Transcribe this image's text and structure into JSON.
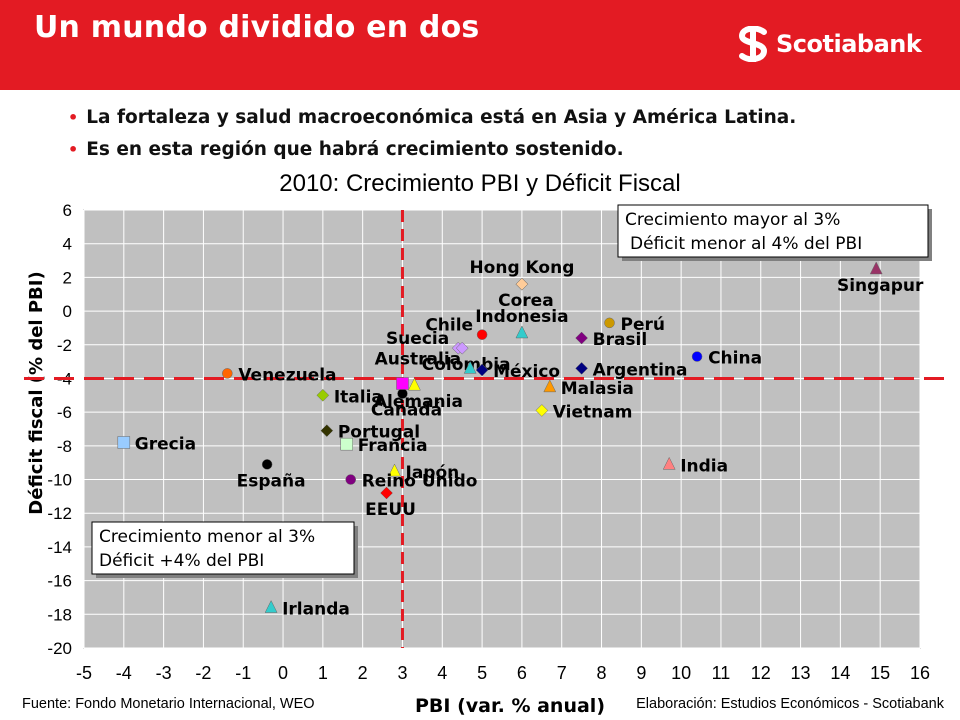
{
  "header": {
    "title": "Un mundo dividido en dos",
    "logo_text": "Scotiabank",
    "bg_color": "#e31b23"
  },
  "bullets": [
    "La fortaleza y salud macroeconómica está en Asia y América Latina.",
    "Es en esta región que habrá crecimiento sostenido."
  ],
  "footer": {
    "source": "Fuente: Fondo Monetario Internacional, WEO",
    "credit": "Elaboración: Estudios Económicos - Scotiabank"
  },
  "chart_data": {
    "type": "scatter",
    "title": "2010: Crecimiento PBI y Déficit Fiscal",
    "xlabel": "PBI (var. % anual)",
    "ylabel": "Déficit fiscal (% del PBI)",
    "xlim": [
      -5,
      16
    ],
    "ylim": [
      -20,
      6
    ],
    "xticks": [
      "-5",
      "-4",
      "-3",
      "-2",
      "-1",
      "0",
      "1",
      "2",
      "3",
      "4",
      "5",
      "6",
      "7",
      "8",
      "9",
      "10",
      "11",
      "12",
      "13",
      "14",
      "15",
      "16"
    ],
    "yticks": [
      "6",
      "4",
      "2",
      "0",
      "-2",
      "-4",
      "-6",
      "-8",
      "-10",
      "-12",
      "-14",
      "-16",
      "-18",
      "-20"
    ],
    "grid": "horizontal and vertical",
    "plot_background": "#c0c0c0",
    "reference_lines": {
      "x": 3,
      "y": -4,
      "color": "#e31b23"
    },
    "annotations": [
      {
        "lines": [
          "Crecimiento mayor al 3%",
          "Déficit menor al 4% del PBI"
        ],
        "anchor": "top-right"
      },
      {
        "lines": [
          "Crecimiento menor al 3%",
          "Déficit    +4% del PBI"
        ],
        "anchor": "lower-left"
      }
    ],
    "points": [
      {
        "label": "Singapur",
        "x": 14.9,
        "y": 2.5,
        "color": "#993366",
        "marker": "triangle",
        "label_pos": "below"
      },
      {
        "label": "Hong Kong",
        "x": 6.0,
        "y": 1.6,
        "color": "#ffcc99",
        "marker": "diamond",
        "label_pos": "above"
      },
      {
        "label": "Corea",
        "x": 6.0,
        "y": 1.6,
        "color": "#ffcc99",
        "marker": "diamond",
        "label_pos": "below"
      },
      {
        "label": "Chile",
        "x": 5.0,
        "y": -1.4,
        "color": "#ff0000",
        "marker": "circle",
        "label_pos": "left"
      },
      {
        "label": "Indonesia",
        "x": 6.0,
        "y": -1.3,
        "color": "#33cccc",
        "marker": "triangle",
        "label_pos": "above"
      },
      {
        "label": "Perú",
        "x": 8.2,
        "y": -0.7,
        "color": "#cc9900",
        "marker": "circle",
        "label_pos": "right"
      },
      {
        "label": "Brasil",
        "x": 7.5,
        "y": -1.6,
        "color": "#800080",
        "marker": "diamond",
        "label_pos": "right"
      },
      {
        "label": "Suecia",
        "x": 4.4,
        "y": -2.2,
        "color": "#cc99ff",
        "marker": "diamond",
        "label_pos": "left"
      },
      {
        "label": "Colombia",
        "x": 4.5,
        "y": -2.2,
        "color": "#cc99ff",
        "marker": "diamond",
        "label_pos": "below"
      },
      {
        "label": "China",
        "x": 10.4,
        "y": -2.7,
        "color": "#0000ff",
        "marker": "circle",
        "label_pos": "right"
      },
      {
        "label": "México",
        "x": 5.0,
        "y": -3.5,
        "color": "#000080",
        "marker": "diamond",
        "label_pos": "right"
      },
      {
        "label": "Australia",
        "x": 4.7,
        "y": -3.4,
        "color": "#33cccc",
        "marker": "triangle",
        "label_pos": "left"
      },
      {
        "label": "Argentina",
        "x": 7.5,
        "y": -3.4,
        "color": "#000080",
        "marker": "diamond",
        "label_pos": "right"
      },
      {
        "label": "Venezuela",
        "x": -1.4,
        "y": -3.7,
        "color": "#ff6600",
        "marker": "circle",
        "label_pos": "right"
      },
      {
        "label": "Malasia",
        "x": 6.7,
        "y": -4.5,
        "color": "#ff9900",
        "marker": "triangle",
        "label_pos": "right"
      },
      {
        "label": "Alemania",
        "x": 3.3,
        "y": -4.4,
        "color": "#ffff00",
        "marker": "triangle",
        "label_pos": "below"
      },
      {
        "label": "Canadá",
        "x": 3.0,
        "y": -4.9,
        "color": "#000000",
        "marker": "circle",
        "label_pos": "below"
      },
      {
        "label": "Italia",
        "x": 1.0,
        "y": -5.0,
        "color": "#99cc00",
        "marker": "diamond",
        "label_pos": "right"
      },
      {
        "label": "Vietnam",
        "x": 6.5,
        "y": -5.9,
        "color": "#ffff00",
        "marker": "diamond",
        "label_pos": "right"
      },
      {
        "label": "Portugal",
        "x": 1.1,
        "y": -7.1,
        "color": "#333300",
        "marker": "diamond",
        "label_pos": "right"
      },
      {
        "label": "Francia",
        "x": 1.6,
        "y": -7.9,
        "color": "#ccffcc",
        "marker": "square",
        "label_pos": "right"
      },
      {
        "label": "Grecia",
        "x": -4.0,
        "y": -7.8,
        "color": "#99ccff",
        "marker": "square",
        "label_pos": "right"
      },
      {
        "label": "España",
        "x": -0.4,
        "y": -9.1,
        "color": "#000000",
        "marker": "circle",
        "label_pos": "below"
      },
      {
        "label": "Japón",
        "x": 2.8,
        "y": -9.5,
        "color": "#ffff00",
        "marker": "triangle",
        "label_pos": "right"
      },
      {
        "label": "India",
        "x": 9.7,
        "y": -9.1,
        "color": "#ff8080",
        "marker": "triangle",
        "label_pos": "right"
      },
      {
        "label": "Reino Unido",
        "x": 1.7,
        "y": -10.0,
        "color": "#800080",
        "marker": "circle",
        "label_pos": "right"
      },
      {
        "label": "EEUU",
        "x": 2.6,
        "y": -10.8,
        "color": "#ff0000",
        "marker": "diamond",
        "label_pos": "below"
      },
      {
        "label": "Irlanda",
        "x": -0.3,
        "y": -17.6,
        "color": "#33cccc",
        "marker": "triangle",
        "label_pos": "right"
      },
      {
        "label": "",
        "x": 3.0,
        "y": -4.3,
        "color": "#ff00ff",
        "marker": "square",
        "label_pos": "none"
      }
    ]
  }
}
